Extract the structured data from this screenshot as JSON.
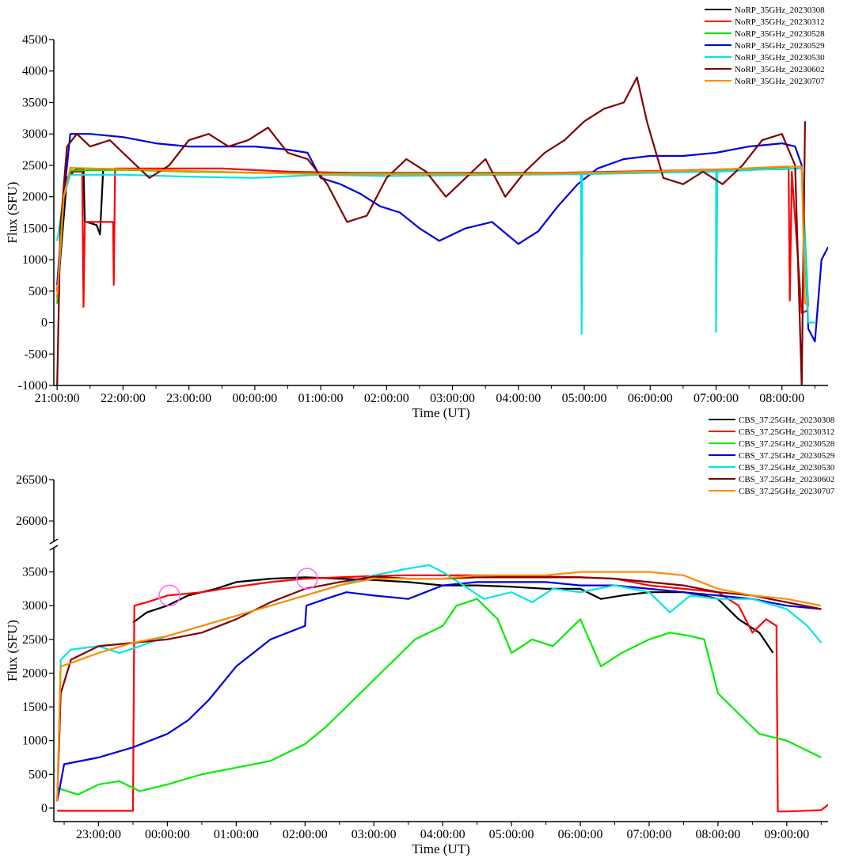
{
  "chart_data": [
    {
      "type": "line",
      "xlabel": "Time (UT)",
      "ylabel": "Flux (SFU)",
      "ylim": [
        -1000,
        4500
      ],
      "xlim": [
        20.95,
        32.7
      ],
      "yticks": [
        "-1000",
        "-500",
        "0",
        "500",
        "1000",
        "1500",
        "2000",
        "2500",
        "3000",
        "3500",
        "4000",
        "4500"
      ],
      "ytick_values": [
        -1000,
        -500,
        0,
        500,
        1000,
        1500,
        2000,
        2500,
        3000,
        3500,
        4000,
        4500
      ],
      "xticks": [
        "21:00:00",
        "22:00:00",
        "23:00:00",
        "00:00:00",
        "01:00:00",
        "02:00:00",
        "03:00:00",
        "04:00:00",
        "05:00:00",
        "06:00:00",
        "07:00:00",
        "08:00:00"
      ],
      "xtick_values": [
        21,
        22,
        23,
        24,
        25,
        26,
        27,
        28,
        29,
        30,
        31,
        32
      ],
      "legend_position": "top-right",
      "series": [
        {
          "name": "NoRP_35GHz_20230308",
          "color": "#000000",
          "x": [
            21.0,
            21.15,
            21.3,
            21.4,
            21.42,
            21.45,
            21.6,
            21.65,
            21.7
          ],
          "y": [
            400,
            2300,
            2450,
            2450,
            1600,
            1600,
            1550,
            1400,
            2450
          ]
        },
        {
          "name": "NoRP_35GHz_20230312",
          "color": "#ff0000",
          "x": [
            21.0,
            21.1,
            21.2,
            21.38,
            21.4,
            21.42,
            21.5,
            21.85,
            21.86,
            21.88,
            22.5,
            23.5,
            24.5,
            25.5,
            26.5,
            27.5,
            28.5,
            29.5,
            30.5,
            31.5,
            32.1,
            32.12,
            32.15,
            32.3,
            32.4
          ],
          "y": [
            500,
            2000,
            2400,
            2400,
            250,
            1600,
            1600,
            1600,
            600,
            2450,
            2450,
            2450,
            2400,
            2380,
            2380,
            2380,
            2380,
            2400,
            2420,
            2450,
            2470,
            350,
            2400,
            150,
            200
          ]
        },
        {
          "name": "NoRP_35GHz_20230528",
          "color": "#00dd00",
          "x": [
            21.0,
            21.1,
            21.2,
            22,
            23,
            24,
            25,
            26,
            27,
            28,
            29,
            30,
            31,
            32,
            32.3,
            32.4
          ],
          "y": [
            300,
            2000,
            2420,
            2430,
            2400,
            2380,
            2370,
            2370,
            2370,
            2370,
            2380,
            2400,
            2420,
            2440,
            2450,
            250
          ]
        },
        {
          "name": "NoRP_35GHz_20230529",
          "color": "#0000dd",
          "x": [
            21.0,
            21.1,
            21.2,
            21.5,
            22.0,
            22.5,
            23.0,
            23.5,
            24.0,
            24.5,
            24.8,
            25.0,
            25.3,
            25.6,
            25.9,
            26.2,
            26.5,
            26.8,
            27.2,
            27.6,
            28.0,
            28.3,
            28.6,
            28.9,
            29.2,
            29.6,
            30.0,
            30.5,
            31.0,
            31.5,
            32.0,
            32.2,
            32.3,
            32.4,
            32.5,
            32.6,
            32.7
          ],
          "y": [
            600,
            2000,
            3000,
            3000,
            2950,
            2850,
            2800,
            2800,
            2800,
            2750,
            2700,
            2300,
            2200,
            2050,
            1850,
            1750,
            1500,
            1300,
            1500,
            1600,
            1250,
            1450,
            1850,
            2200,
            2450,
            2600,
            2650,
            2650,
            2700,
            2800,
            2850,
            2800,
            2500,
            -100,
            -300,
            1000,
            1200
          ]
        },
        {
          "name": "NoRP_35GHz_20230530",
          "color": "#00e5e5",
          "x": [
            21.0,
            21.1,
            21.2,
            22,
            23,
            24,
            25,
            26,
            27,
            28,
            28.95,
            28.96,
            28.97,
            29,
            30,
            31,
            31.0,
            31.02,
            31.03,
            32,
            32.3,
            32.4,
            32.5
          ],
          "y": [
            1300,
            2000,
            2350,
            2350,
            2320,
            2300,
            2350,
            2330,
            2340,
            2350,
            2360,
            -180,
            2360,
            2360,
            2380,
            2400,
            -150,
            2400,
            2400,
            2450,
            2450,
            0,
            0
          ]
        },
        {
          "name": "NoRP_35GHz_20230602",
          "color": "#800000",
          "x": [
            21.0,
            21.05,
            21.15,
            21.3,
            21.5,
            21.8,
            22.1,
            22.4,
            22.7,
            23.0,
            23.3,
            23.6,
            23.9,
            24.2,
            24.5,
            24.8,
            25.1,
            25.4,
            25.7,
            26.0,
            26.3,
            26.6,
            26.9,
            27.2,
            27.5,
            27.8,
            28.1,
            28.4,
            28.7,
            29.0,
            29.3,
            29.6,
            29.8,
            29.95,
            30.2,
            30.5,
            30.8,
            31.1,
            31.4,
            31.7,
            32.0,
            32.2,
            32.3,
            32.35
          ],
          "y": [
            -1000,
            1500,
            2800,
            3000,
            2800,
            2900,
            2600,
            2300,
            2500,
            2900,
            3000,
            2800,
            2900,
            3100,
            2700,
            2600,
            2200,
            1600,
            1700,
            2300,
            2600,
            2400,
            2000,
            2300,
            2600,
            2000,
            2400,
            2700,
            2900,
            3200,
            3400,
            3500,
            3900,
            3200,
            2300,
            2200,
            2400,
            2200,
            2500,
            2900,
            3000,
            2500,
            -1000,
            3200
          ]
        },
        {
          "name": "NoRP_35GHz_20230707",
          "color": "#ff8c00",
          "x": [
            21.0,
            21.1,
            21.2,
            22,
            23,
            24,
            25,
            26,
            27,
            28,
            29,
            30,
            31,
            32,
            32.3,
            32.35,
            32.4
          ],
          "y": [
            400,
            2000,
            2460,
            2440,
            2410,
            2380,
            2360,
            2360,
            2360,
            2360,
            2380,
            2400,
            2430,
            2480,
            2480,
            300,
            300
          ]
        }
      ]
    },
    {
      "type": "line",
      "xlabel": "Time (UT)",
      "ylabel": "Flux (SFU)",
      "ylim": [
        -200,
        26500
      ],
      "y_axis_break": [
        3800,
        25800
      ],
      "xlim": [
        22.35,
        33.6
      ],
      "yticks": [
        "0",
        "500",
        "1000",
        "1500",
        "2000",
        "2500",
        "3000",
        "3500",
        "26000",
        "26500"
      ],
      "ytick_values": [
        0,
        500,
        1000,
        1500,
        2000,
        2500,
        3000,
        3500,
        26000,
        26500
      ],
      "xticks": [
        "23:00:00",
        "00:00:00",
        "01:00:00",
        "02:00:00",
        "03:00:00",
        "04:00:00",
        "05:00:00",
        "06:00:00",
        "07:00:00",
        "08:00:00",
        "09:00:00"
      ],
      "xtick_values": [
        23,
        24,
        25,
        26,
        27,
        28,
        29,
        30,
        31,
        32,
        33
      ],
      "legend_position": "top-right",
      "annotations": [
        {
          "shape": "circle",
          "x": 24.03,
          "y": 3150,
          "color": "#ff66ff"
        },
        {
          "shape": "circle",
          "x": 26.03,
          "y": 3400,
          "color": "#ff66ff"
        }
      ],
      "series": [
        {
          "name": "CBS_37.25GHz_20230308",
          "color": "#000000",
          "x": [
            23.5,
            23.7,
            24.0,
            24.3,
            24.7,
            25.0,
            25.5,
            26.0,
            26.5,
            27.0,
            27.5,
            28.0,
            28.5,
            29.0,
            29.5,
            30.0,
            30.3,
            30.6,
            31.0,
            31.5,
            31.8,
            32.0,
            32.3,
            32.6,
            32.8
          ],
          "y": [
            2750,
            2900,
            3000,
            3150,
            3250,
            3350,
            3400,
            3420,
            3400,
            3380,
            3350,
            3300,
            3300,
            3280,
            3250,
            3250,
            3100,
            3150,
            3200,
            3200,
            3150,
            3100,
            2800,
            2600,
            2300
          ]
        },
        {
          "name": "CBS_37.25GHz_20230312",
          "color": "#ff0000",
          "x": [
            22.4,
            23.5,
            23.52,
            23.7,
            24.0,
            24.5,
            25.0,
            25.5,
            26.0,
            26.5,
            27.0,
            27.5,
            28.0,
            28.5,
            29.0,
            29.5,
            30.0,
            30.5,
            31.0,
            31.5,
            32.0,
            32.3,
            32.5,
            32.7,
            32.85,
            32.87,
            33.0,
            33.5,
            33.6
          ],
          "y": [
            -40,
            -40,
            3000,
            3050,
            3150,
            3200,
            3280,
            3350,
            3400,
            3420,
            3440,
            3450,
            3450,
            3450,
            3440,
            3430,
            3420,
            3400,
            3300,
            3250,
            3200,
            3000,
            2600,
            2800,
            2700,
            -50,
            -50,
            -30,
            50
          ]
        },
        {
          "name": "CBS_37.25GHz_20230528",
          "color": "#00ee00",
          "x": [
            22.4,
            22.7,
            23.0,
            23.3,
            23.6,
            24.0,
            24.5,
            25.0,
            25.5,
            26.0,
            26.3,
            26.6,
            27.0,
            27.3,
            27.6,
            28.0,
            28.2,
            28.5,
            28.8,
            29.0,
            29.3,
            29.6,
            30.0,
            30.3,
            30.6,
            31.0,
            31.3,
            31.6,
            31.8,
            32.0,
            32.3,
            32.6,
            33.0,
            33.3,
            33.5
          ],
          "y": [
            300,
            200,
            350,
            400,
            250,
            350,
            500,
            600,
            700,
            950,
            1200,
            1500,
            1900,
            2200,
            2500,
            2700,
            3000,
            3100,
            2800,
            2300,
            2500,
            2400,
            2800,
            2100,
            2300,
            2500,
            2600,
            2550,
            2500,
            1700,
            1400,
            1100,
            1000,
            850,
            750
          ]
        },
        {
          "name": "CBS_37.25GHz_20230529",
          "color": "#0000dd",
          "x": [
            22.4,
            22.5,
            23.0,
            23.5,
            24.0,
            24.3,
            24.6,
            25.0,
            25.5,
            26.0,
            26.02,
            26.3,
            26.6,
            27.0,
            27.5,
            28.0,
            28.5,
            29.0,
            29.5,
            30.0,
            30.5,
            31.0,
            31.5,
            32.0,
            32.5,
            33.0,
            33.5
          ],
          "y": [
            100,
            650,
            750,
            900,
            1100,
            1300,
            1600,
            2100,
            2500,
            2700,
            3000,
            3100,
            3200,
            3150,
            3100,
            3300,
            3350,
            3350,
            3350,
            3300,
            3300,
            3250,
            3200,
            3150,
            3100,
            3000,
            2950
          ]
        },
        {
          "name": "CBS_37.25GHz_20230530",
          "color": "#00e5e5",
          "x": [
            22.4,
            22.45,
            22.6,
            23.0,
            23.3,
            23.6,
            24.0,
            24.5,
            25.0,
            25.5,
            26.0,
            26.5,
            27.0,
            27.5,
            27.8,
            28.0,
            28.3,
            28.6,
            29.0,
            29.3,
            29.6,
            30.0,
            30.5,
            31.0,
            31.3,
            31.6,
            32.0,
            32.5,
            33.0,
            33.3,
            33.5
          ],
          "y": [
            100,
            2200,
            2350,
            2400,
            2300,
            2400,
            2550,
            2700,
            2850,
            3000,
            3150,
            3300,
            3450,
            3550,
            3600,
            3500,
            3300,
            3100,
            3200,
            3050,
            3250,
            3200,
            3300,
            3200,
            2900,
            3150,
            3100,
            3100,
            2950,
            2700,
            2450
          ]
        },
        {
          "name": "CBS_37.25GHz_20230602",
          "color": "#800000",
          "x": [
            22.4,
            22.45,
            22.6,
            23.0,
            23.5,
            24.0,
            24.5,
            25.0,
            25.5,
            26.0,
            26.5,
            27.0,
            27.5,
            28.0,
            28.5,
            29.0,
            29.5,
            30.0,
            30.5,
            31.0,
            31.5,
            32.0,
            32.5,
            33.0,
            33.5
          ],
          "y": [
            100,
            1700,
            2200,
            2400,
            2450,
            2500,
            2600,
            2800,
            3050,
            3250,
            3350,
            3430,
            3400,
            3400,
            3420,
            3420,
            3420,
            3420,
            3400,
            3350,
            3300,
            3200,
            3150,
            3050,
            2950
          ]
        },
        {
          "name": "CBS_37.25GHz_20230707",
          "color": "#ff8c00",
          "x": [
            22.4,
            22.45,
            22.6,
            23.0,
            23.5,
            24.0,
            24.5,
            25.0,
            25.5,
            26.0,
            26.5,
            27.0,
            27.5,
            28.0,
            28.5,
            29.0,
            29.5,
            30.0,
            30.5,
            31.0,
            31.5,
            32.0,
            32.5,
            33.0,
            33.5
          ],
          "y": [
            100,
            2100,
            2150,
            2300,
            2450,
            2550,
            2700,
            2850,
            3000,
            3150,
            3300,
            3400,
            3400,
            3400,
            3450,
            3450,
            3450,
            3500,
            3500,
            3500,
            3450,
            3250,
            3150,
            3100,
            3000
          ]
        }
      ]
    }
  ]
}
